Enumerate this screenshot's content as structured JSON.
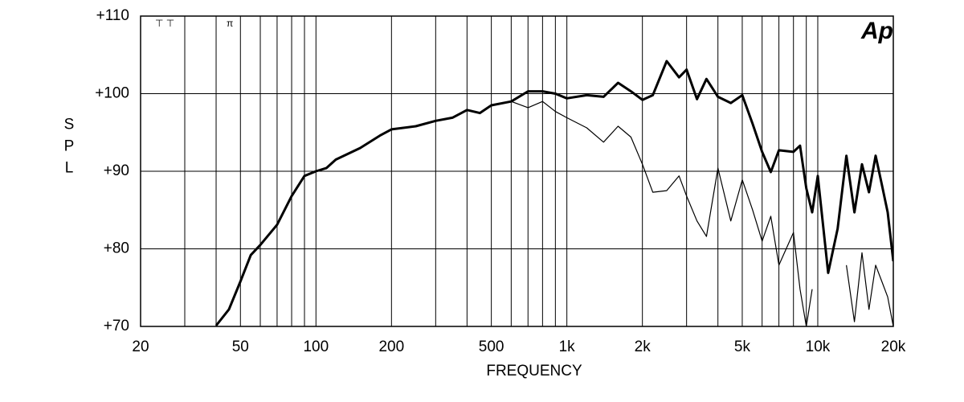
{
  "chart_data": {
    "type": "line",
    "logo": "Ap",
    "xlabel": "FREQUENCY",
    "ylabel": "SPL",
    "xscale": "log",
    "grid": true,
    "xlim": [
      20,
      20000
    ],
    "ylim": [
      70,
      110
    ],
    "xticks": [
      20,
      50,
      100,
      200,
      500,
      {
        "value": 1000,
        "label": "1k"
      },
      {
        "value": 2000,
        "label": "2k"
      },
      {
        "value": 5000,
        "label": "5k"
      },
      {
        "value": 10000,
        "label": "10k"
      },
      {
        "value": 20000,
        "label": "20k"
      }
    ],
    "xminor": [
      30,
      40,
      60,
      70,
      80,
      90,
      300,
      400,
      600,
      700,
      800,
      900,
      3000,
      4000,
      6000,
      7000,
      8000,
      9000
    ],
    "yticks": [
      {
        "value": 70,
        "label": "+70"
      },
      {
        "value": 80,
        "label": "+80"
      },
      {
        "value": 90,
        "label": "+90"
      },
      {
        "value": 100,
        "label": "+100"
      },
      {
        "value": 110,
        "label": "+110"
      }
    ],
    "x": [
      40,
      45,
      50,
      55,
      60,
      70,
      80,
      90,
      100,
      110,
      120,
      150,
      180,
      200,
      250,
      300,
      350,
      400,
      450,
      500,
      600,
      700,
      800,
      900,
      1000,
      1200,
      1400,
      1600,
      1800,
      2000,
      2200,
      2500,
      2800,
      3000,
      3300,
      3600,
      4000,
      4500,
      5000,
      5500,
      6000,
      6500,
      7000,
      8000,
      8500,
      9000,
      9500,
      10000,
      11000,
      12000,
      13000,
      14000,
      15000,
      16000,
      17000,
      18000,
      19000,
      20000
    ],
    "series": [
      {
        "color": "#000000",
        "line_width": 3,
        "values": [
          70.1,
          72.2,
          75.8,
          79.2,
          80.5,
          83.1,
          86.8,
          89.4,
          90,
          90.4,
          91.5,
          93,
          94.6,
          95.4,
          95.8,
          96.5,
          96.9,
          97.9,
          97.5,
          98.5,
          99,
          100.3,
          100.3,
          100,
          99.4,
          99.8,
          99.6,
          101.4,
          100.3,
          99.2,
          99.8,
          104.2,
          102.1,
          103.1,
          99.3,
          101.9,
          99.6,
          98.8,
          99.8,
          96.1,
          92.5,
          89.9,
          92.7,
          92.5,
          93.3,
          87.8,
          84.7,
          89.4,
          76.9,
          82.6,
          92,
          84.7,
          90.9,
          87.3,
          92,
          88.3,
          84.7,
          78.4
        ]
      },
      {
        "color": "#000000",
        "line_width": 1.2,
        "values": [
          70.1,
          72.2,
          75.8,
          79.2,
          80.5,
          83.1,
          86.8,
          89.4,
          90,
          90.4,
          91.5,
          93,
          94.6,
          95.4,
          95.8,
          96.5,
          96.9,
          97.9,
          97.5,
          98.5,
          99,
          98.2,
          99,
          97.7,
          96.9,
          95.6,
          93.75,
          95.8,
          94.4,
          90.9,
          87.3,
          87.5,
          89.4,
          86.8,
          83.6,
          81.6,
          90.4,
          83.6,
          88.9,
          85,
          81,
          84.2,
          77.9,
          82.1,
          74.8,
          70,
          74.8,
          null,
          null,
          null,
          77.9,
          70.6,
          79.5,
          72.2,
          77.9,
          75.8,
          73.8,
          70
        ]
      }
    ]
  }
}
